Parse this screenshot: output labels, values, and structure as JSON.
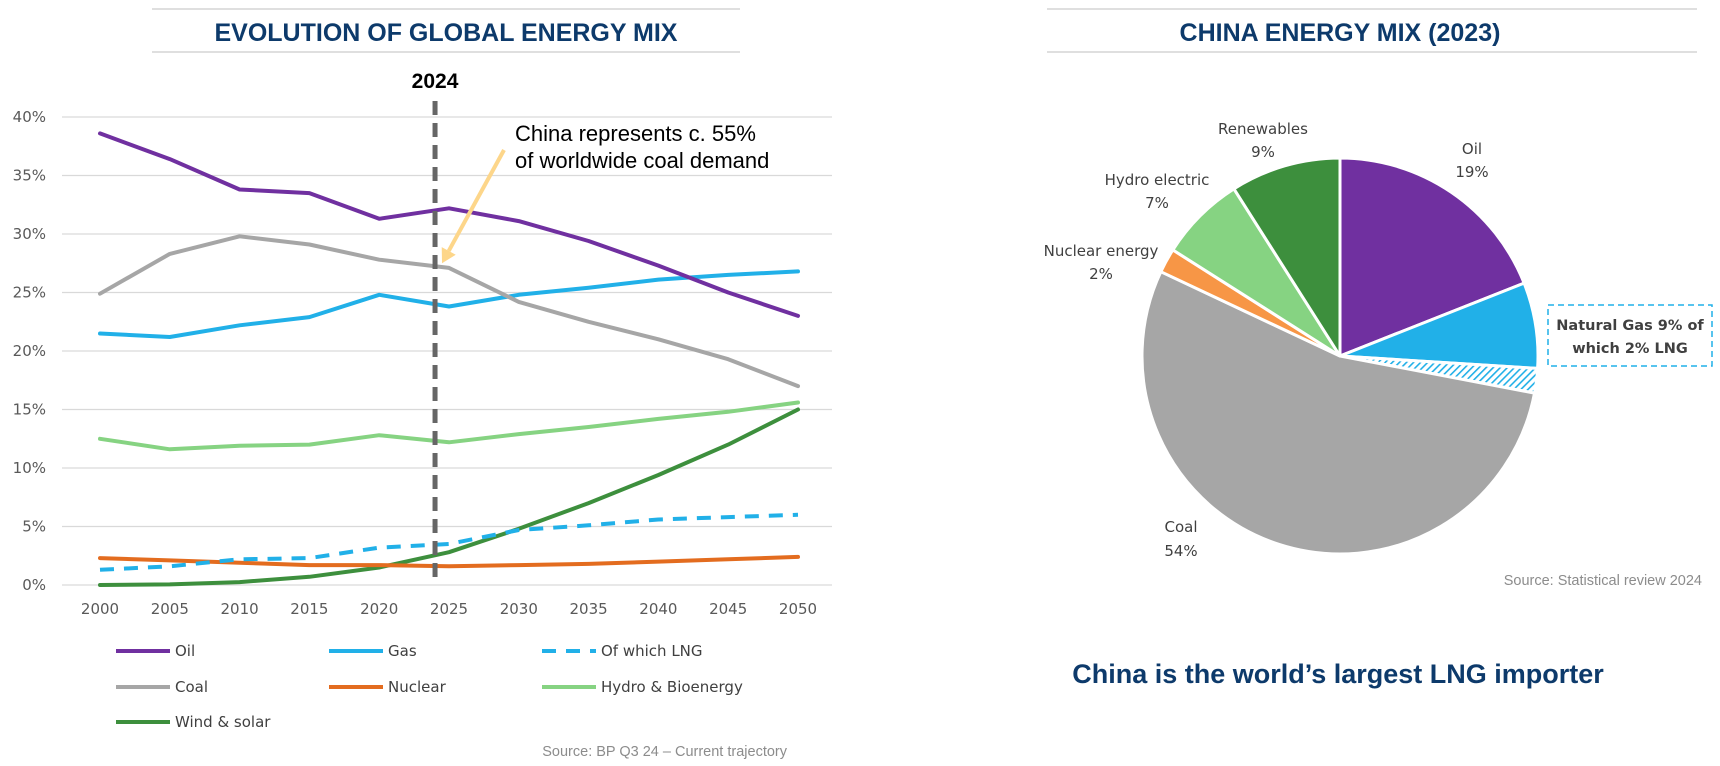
{
  "chart_data": [
    {
      "type": "line",
      "title": "EVOLUTION OF GLOBAL ENERGY MIX",
      "x": [
        2000,
        2005,
        2010,
        2015,
        2020,
        2025,
        2030,
        2035,
        2040,
        2045,
        2050
      ],
      "ylim": [
        0,
        40
      ],
      "yticks": [
        "0%",
        "5%",
        "10%",
        "15%",
        "20%",
        "25%",
        "30%",
        "35%",
        "40%"
      ],
      "grid": true,
      "marker_line": {
        "label": "2024",
        "x": 2024
      },
      "annotation": {
        "lines": [
          "China represents c. 55%",
          "of worldwide coal demand"
        ],
        "arrow_target": {
          "x": 2024.5,
          "y": 27.5
        }
      },
      "series": [
        {
          "name": "Oil",
          "color": "#7030a0",
          "dashed": false,
          "values": [
            38.6,
            36.4,
            33.8,
            33.5,
            31.3,
            32.2,
            31.1,
            29.4,
            27.3,
            25.0,
            23.0
          ]
        },
        {
          "name": "Gas",
          "color": "#21b0e8",
          "dashed": false,
          "values": [
            21.5,
            21.2,
            22.2,
            22.9,
            24.8,
            23.8,
            24.8,
            25.4,
            26.1,
            26.5,
            26.8
          ]
        },
        {
          "name": "Of which LNG",
          "color": "#21b0e8",
          "dashed": true,
          "values": [
            1.3,
            1.6,
            2.2,
            2.3,
            3.2,
            3.5,
            4.7,
            5.1,
            5.6,
            5.8,
            6.0
          ]
        },
        {
          "name": "Coal",
          "color": "#a6a6a6",
          "dashed": false,
          "values": [
            24.9,
            28.3,
            29.8,
            29.1,
            27.8,
            27.1,
            24.2,
            22.5,
            21.0,
            19.3,
            17.0
          ]
        },
        {
          "name": "Nuclear",
          "color": "#e36c1f",
          "dashed": false,
          "values": [
            2.3,
            2.1,
            1.9,
            1.7,
            1.7,
            1.6,
            1.7,
            1.8,
            2.0,
            2.2,
            2.4
          ]
        },
        {
          "name": "Hydro & Bioenergy",
          "color": "#86d382",
          "dashed": false,
          "values": [
            12.5,
            11.6,
            11.9,
            12.0,
            12.8,
            12.2,
            12.9,
            13.5,
            14.2,
            14.8,
            15.6
          ]
        },
        {
          "name": "Wind & solar",
          "color": "#3d8f3d",
          "dashed": false,
          "values": [
            0.0,
            0.05,
            0.25,
            0.7,
            1.5,
            2.8,
            4.8,
            7.0,
            9.4,
            12.0,
            15.0
          ]
        }
      ],
      "source": "Source: BP Q3 24 – Current trajectory"
    },
    {
      "type": "pie",
      "title": "CHINA ENERGY MIX (2023)",
      "slices": [
        {
          "label": "Oil",
          "pct": "19%",
          "value": 19,
          "color": "#7030a0"
        },
        {
          "label": "Natural Gas",
          "pct": "",
          "value": 7,
          "color": "#21b0e8"
        },
        {
          "label": "LNG",
          "pct": "",
          "value": 2,
          "color": "#21b0e8",
          "hatched": true
        },
        {
          "label": "Coal",
          "pct": "54%",
          "value": 54,
          "color": "#a6a6a6"
        },
        {
          "label": "Nuclear energy",
          "pct": "2%",
          "value": 2,
          "color": "#f79646"
        },
        {
          "label": "Hydro electric",
          "pct": "7%",
          "value": 7,
          "color": "#86d382"
        },
        {
          "label": "Renewables",
          "pct": "9%",
          "value": 9,
          "color": "#3d8f3d"
        }
      ],
      "note_box": [
        "Natural Gas 9% of",
        "which 2% LNG"
      ],
      "source": "Source: Statistical review 2024",
      "headline": "China is the world’s largest LNG importer"
    }
  ]
}
